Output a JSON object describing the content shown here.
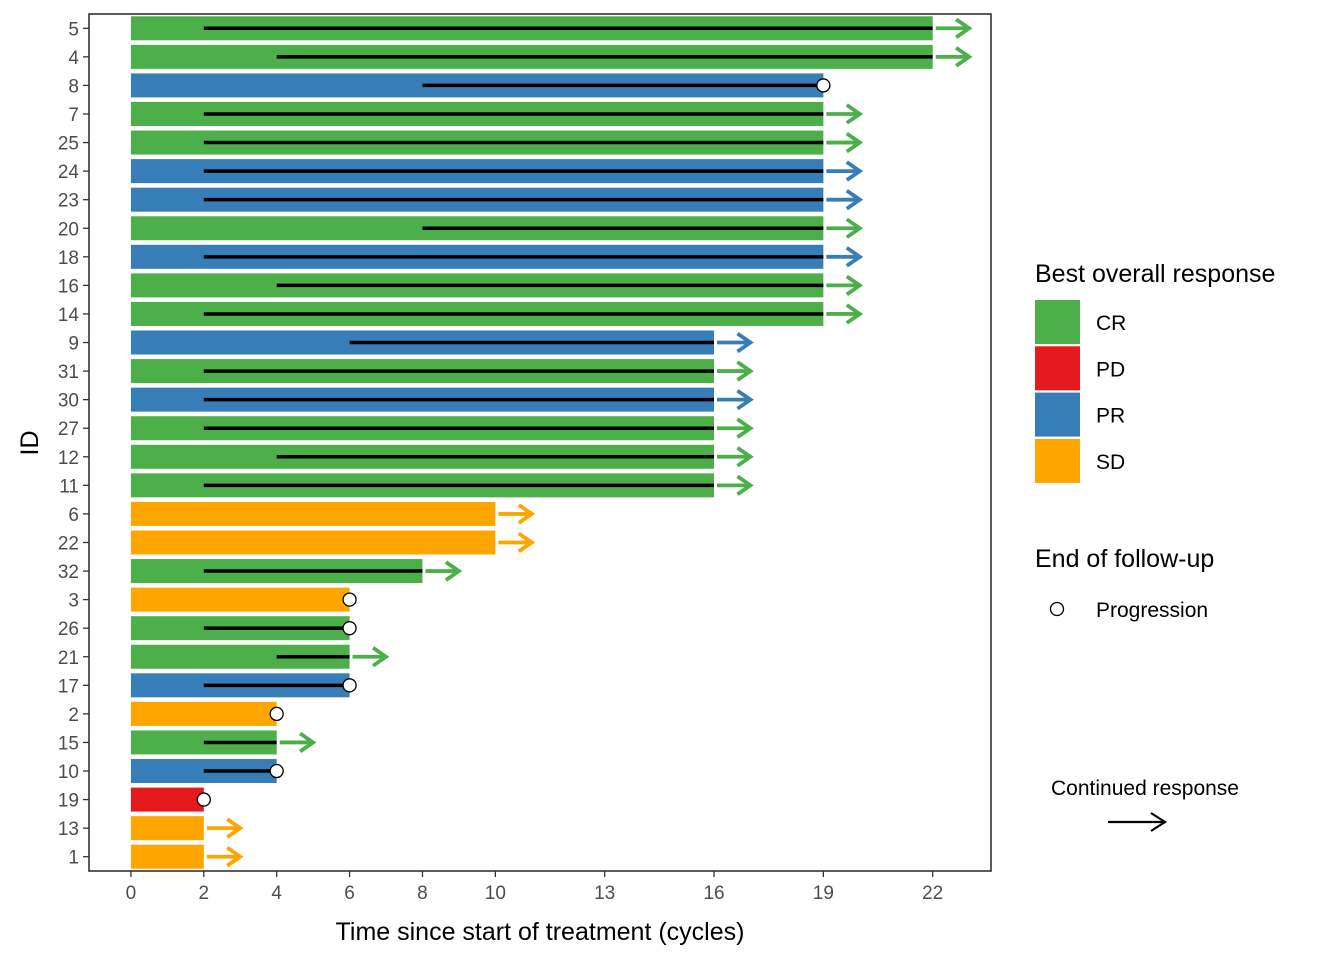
{
  "chart_data": {
    "type": "bar",
    "orientation": "horizontal",
    "title": "",
    "xlabel": "Time since start of treatment (cycles)",
    "ylabel": "ID",
    "xlim": [
      -1.15,
      23.6
    ],
    "x_ticks": [
      0,
      2,
      4,
      6,
      8,
      10,
      13,
      16,
      19,
      22
    ],
    "grid": false,
    "legend_position": "right",
    "rows": [
      {
        "id": "5",
        "end": 22,
        "response": "CR",
        "response_start": 2,
        "continued": true,
        "progression": false
      },
      {
        "id": "4",
        "end": 22,
        "response": "CR",
        "response_start": 4,
        "continued": true,
        "progression": false
      },
      {
        "id": "8",
        "end": 19,
        "response": "PR",
        "response_start": 8,
        "continued": false,
        "progression": true
      },
      {
        "id": "7",
        "end": 19,
        "response": "CR",
        "response_start": 2,
        "continued": true,
        "progression": false
      },
      {
        "id": "25",
        "end": 19,
        "response": "CR",
        "response_start": 2,
        "continued": true,
        "progression": false
      },
      {
        "id": "24",
        "end": 19,
        "response": "PR",
        "response_start": 2,
        "continued": true,
        "progression": false
      },
      {
        "id": "23",
        "end": 19,
        "response": "PR",
        "response_start": 2,
        "continued": true,
        "progression": false
      },
      {
        "id": "20",
        "end": 19,
        "response": "CR",
        "response_start": 8,
        "continued": true,
        "progression": false
      },
      {
        "id": "18",
        "end": 19,
        "response": "PR",
        "response_start": 2,
        "continued": true,
        "progression": false
      },
      {
        "id": "16",
        "end": 19,
        "response": "CR",
        "response_start": 4,
        "continued": true,
        "progression": false
      },
      {
        "id": "14",
        "end": 19,
        "response": "CR",
        "response_start": 2,
        "continued": true,
        "progression": false
      },
      {
        "id": "9",
        "end": 16,
        "response": "PR",
        "response_start": 6,
        "continued": true,
        "progression": false
      },
      {
        "id": "31",
        "end": 16,
        "response": "CR",
        "response_start": 2,
        "continued": true,
        "progression": false
      },
      {
        "id": "30",
        "end": 16,
        "response": "PR",
        "response_start": 2,
        "continued": true,
        "progression": false
      },
      {
        "id": "27",
        "end": 16,
        "response": "CR",
        "response_start": 2,
        "continued": true,
        "progression": false
      },
      {
        "id": "12",
        "end": 16,
        "response": "CR",
        "response_start": 4,
        "continued": true,
        "progression": false
      },
      {
        "id": "11",
        "end": 16,
        "response": "CR",
        "response_start": 2,
        "continued": true,
        "progression": false
      },
      {
        "id": "6",
        "end": 10,
        "response": "SD",
        "response_start": null,
        "continued": true,
        "progression": false
      },
      {
        "id": "22",
        "end": 10,
        "response": "SD",
        "response_start": null,
        "continued": true,
        "progression": false
      },
      {
        "id": "32",
        "end": 8,
        "response": "CR",
        "response_start": 2,
        "continued": true,
        "progression": false
      },
      {
        "id": "3",
        "end": 6,
        "response": "SD",
        "response_start": null,
        "continued": false,
        "progression": true
      },
      {
        "id": "26",
        "end": 6,
        "response": "CR",
        "response_start": 2,
        "continued": false,
        "progression": true
      },
      {
        "id": "21",
        "end": 6,
        "response": "CR",
        "response_start": 4,
        "continued": true,
        "progression": false
      },
      {
        "id": "17",
        "end": 6,
        "response": "PR",
        "response_start": 2,
        "continued": false,
        "progression": true
      },
      {
        "id": "2",
        "end": 4,
        "response": "SD",
        "response_start": null,
        "continued": false,
        "progression": true
      },
      {
        "id": "15",
        "end": 4,
        "response": "CR",
        "response_start": 2,
        "continued": true,
        "progression": false
      },
      {
        "id": "10",
        "end": 4,
        "response": "PR",
        "response_start": 2,
        "continued": false,
        "progression": true
      },
      {
        "id": "19",
        "end": 2,
        "response": "PD",
        "response_start": null,
        "continued": false,
        "progression": true
      },
      {
        "id": "13",
        "end": 2,
        "response": "SD",
        "response_start": null,
        "continued": true,
        "progression": false
      },
      {
        "id": "1",
        "end": 2,
        "response": "SD",
        "response_start": null,
        "continued": true,
        "progression": false
      }
    ],
    "legend": {
      "response_title": "Best overall response",
      "responses": [
        {
          "label": "CR",
          "color": "#4daf4a"
        },
        {
          "label": "PD",
          "color": "#e41a1c"
        },
        {
          "label": "PR",
          "color": "#377eb8"
        },
        {
          "label": "SD",
          "color": "#ffa500"
        }
      ],
      "followup_title": "End of follow-up",
      "progression_label": "Progression",
      "continued_label": "Continued response"
    }
  }
}
